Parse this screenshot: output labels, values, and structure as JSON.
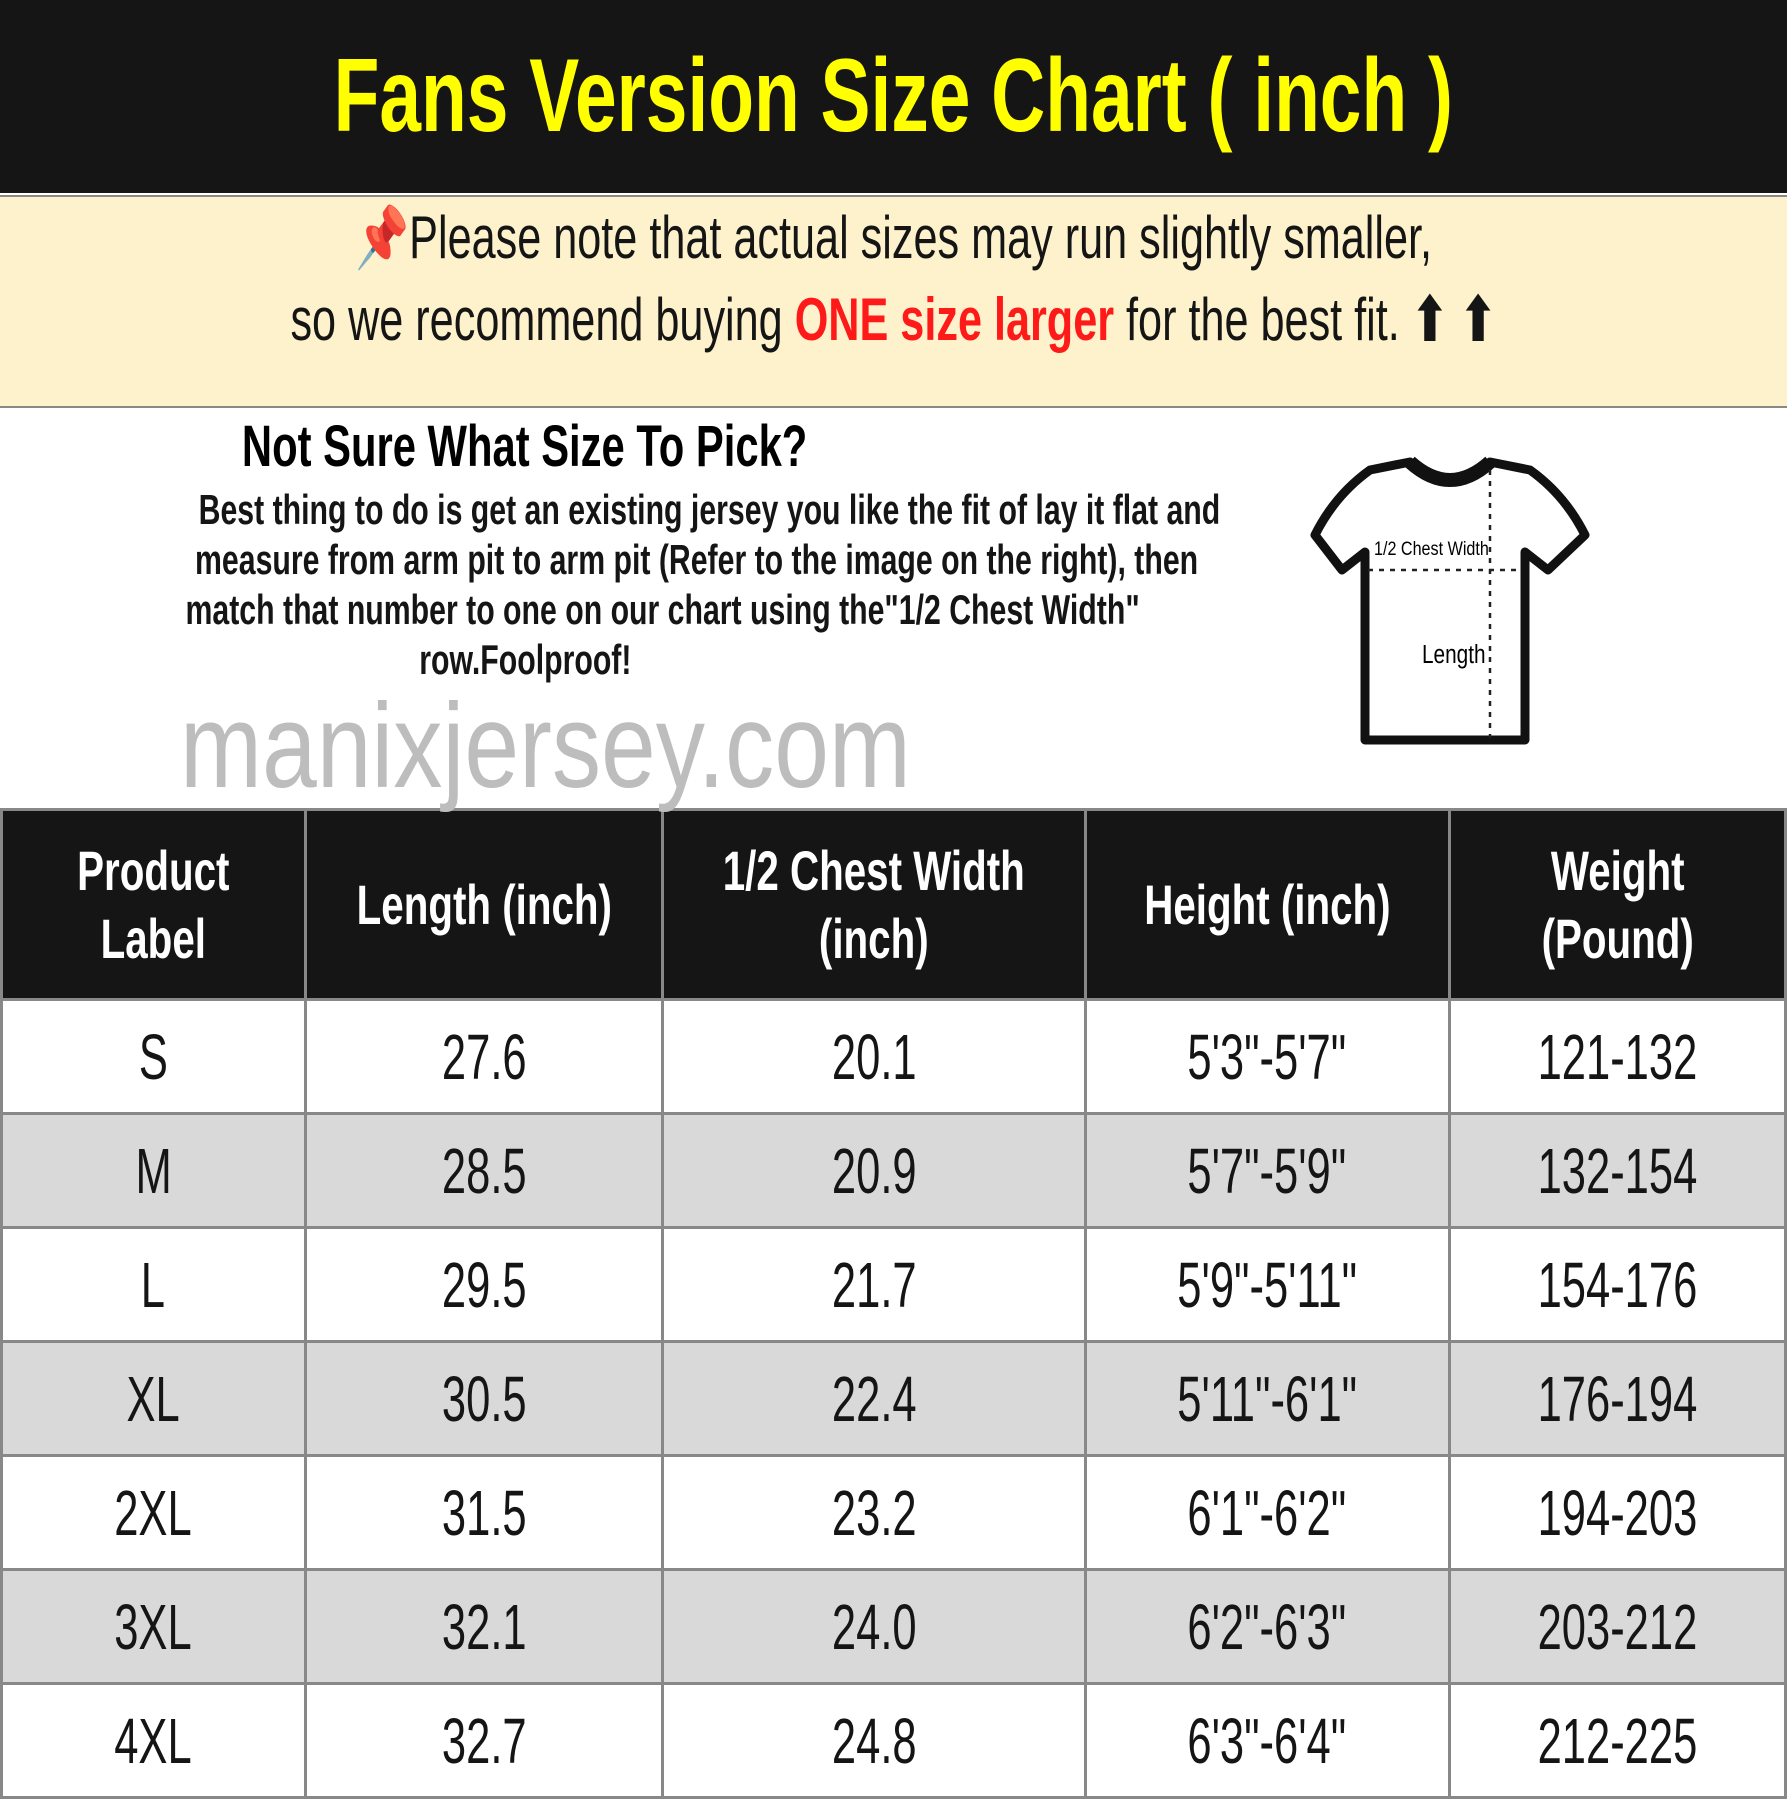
{
  "title": "Fans Version Size Chart ( inch )",
  "note": {
    "pin_icon": "pushpin-icon",
    "line1": "Please note that actual sizes may run slightly smaller,",
    "line2_pre": "so we recommend buying ",
    "line2_emph": "ONE size larger",
    "line2_post": " for the best fit. ",
    "arrows": "⬆ ⬆",
    "emph_color": "#ff1a1a"
  },
  "info": {
    "heading": "Not Sure What Size To Pick?",
    "lines": [
      "Best thing to do is get an existing jersey you like the fit of lay it flat and",
      "measure from arm pit to arm pit (Refer to the image on the right), then",
      "match that number to one on our chart using the\"1/2 Chest Width\"",
      "row.Foolproof!"
    ],
    "diagram": {
      "chest_label": "1/2 Chest Width",
      "length_label": "Length"
    }
  },
  "table": {
    "headers": [
      [
        "Product",
        "Label"
      ],
      [
        "Length (inch)"
      ],
      [
        "1/2 Chest Width",
        "(inch)"
      ],
      [
        "Height (inch)"
      ],
      [
        "Weight",
        "(Pound)"
      ]
    ],
    "rows": [
      [
        "S",
        "27.6",
        "20.1",
        "5'3\"-5'7\"",
        "121-132"
      ],
      [
        "M",
        "28.5",
        "20.9",
        "5'7\"-5'9\"",
        "132-154"
      ],
      [
        "L",
        "29.5",
        "21.7",
        "5'9\"-5'11\"",
        "154-176"
      ],
      [
        "XL",
        "30.5",
        "22.4",
        "5'11\"-6'1\"",
        "176-194"
      ],
      [
        "2XL",
        "31.5",
        "23.2",
        "6'1\"-6'2\"",
        "194-203"
      ],
      [
        "3XL",
        "32.1",
        "24.0",
        "6'2\"-6'3\"",
        "203-212"
      ],
      [
        "4XL",
        "32.7",
        "24.8",
        "6'3\"-6'4\"",
        "212-225"
      ]
    ]
  },
  "watermark": "manixjersey.com",
  "colors": {
    "title_bg": "#151515",
    "title_text": "#ffff00",
    "note_bg": "#fdf2cc",
    "alt_row": "#d9d9d9"
  }
}
